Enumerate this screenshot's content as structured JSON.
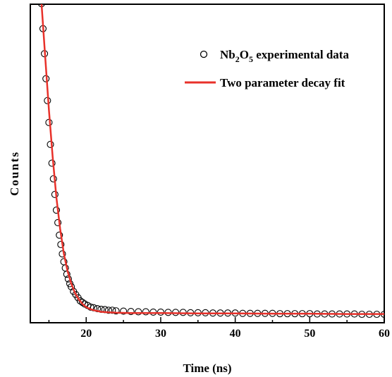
{
  "chart_data": {
    "type": "scatter",
    "title": "",
    "xlabel": "Time (ns)",
    "ylabel": "Counts",
    "xlim": [
      12.5,
      60
    ],
    "ylim": [
      0,
      1.0
    ],
    "y_ticks_shown": false,
    "grid": false,
    "legend_position": "top-right",
    "x_ticks": [
      20,
      30,
      40,
      50,
      60
    ],
    "series": [
      {
        "name": "experimental data",
        "legend_label": "Nb2O5 experimental data",
        "legend_parts": [
          "Nb",
          "2",
          "O",
          "5",
          " experimental data"
        ],
        "kind": "markers",
        "marker": "open-circle",
        "color": "#000000",
        "x": [
          14.0,
          14.2,
          14.4,
          14.6,
          14.8,
          15.0,
          15.2,
          15.4,
          15.6,
          15.8,
          16.0,
          16.2,
          16.4,
          16.6,
          16.8,
          17.0,
          17.2,
          17.4,
          17.6,
          17.8,
          18.0,
          18.3,
          18.6,
          18.9,
          19.2,
          19.5,
          19.8,
          20.2,
          20.6,
          21.0,
          21.5,
          22.0,
          22.5,
          23.0,
          23.5,
          24.0,
          25.0,
          26.0,
          27.0,
          28.0,
          29.0,
          30.0,
          31.0,
          32.0,
          33.0,
          34.0,
          35.0,
          36.0,
          37.0,
          38.0,
          39.0,
          40.0,
          41.0,
          42.0,
          43.0,
          44.0,
          45.0,
          46.0,
          47.0,
          48.0,
          49.0,
          50.0,
          51.0,
          52.0,
          53.0,
          54.0,
          55.0,
          56.0,
          57.0,
          58.0,
          59.0,
          60.0
        ],
        "y": [
          1.02,
          0.94,
          0.86,
          0.78,
          0.71,
          0.64,
          0.57,
          0.51,
          0.46,
          0.41,
          0.36,
          0.32,
          0.28,
          0.25,
          0.22,
          0.195,
          0.175,
          0.155,
          0.14,
          0.125,
          0.115,
          0.1,
          0.09,
          0.08,
          0.07,
          0.065,
          0.06,
          0.055,
          0.05,
          0.048,
          0.045,
          0.043,
          0.042,
          0.04,
          0.04,
          0.038,
          0.037,
          0.036,
          0.035,
          0.035,
          0.034,
          0.034,
          0.033,
          0.033,
          0.033,
          0.032,
          0.032,
          0.032,
          0.031,
          0.031,
          0.031,
          0.031,
          0.03,
          0.03,
          0.03,
          0.03,
          0.03,
          0.029,
          0.029,
          0.029,
          0.029,
          0.029,
          0.028,
          0.028,
          0.028,
          0.028,
          0.028,
          0.028,
          0.027,
          0.027,
          0.027,
          0.027
        ]
      },
      {
        "name": "Two parameter decay fit",
        "legend_label": "Two parameter decay fit",
        "kind": "line",
        "color": "#e8312a",
        "x": [
          14.0,
          14.5,
          15.0,
          15.5,
          16.0,
          16.5,
          17.0,
          17.5,
          18.0,
          18.5,
          19.0,
          19.5,
          20.0,
          20.5,
          21.0,
          22.0,
          23.0,
          24.0,
          26.0,
          28.0,
          30.0,
          35.0,
          40.0,
          45.0,
          50.0,
          55.0,
          60.0
        ],
        "y": [
          1.02,
          0.85,
          0.68,
          0.53,
          0.4,
          0.3,
          0.22,
          0.165,
          0.125,
          0.095,
          0.075,
          0.06,
          0.05,
          0.044,
          0.04,
          0.035,
          0.033,
          0.032,
          0.031,
          0.031,
          0.031,
          0.03,
          0.03,
          0.029,
          0.029,
          0.028,
          0.028
        ]
      }
    ]
  }
}
